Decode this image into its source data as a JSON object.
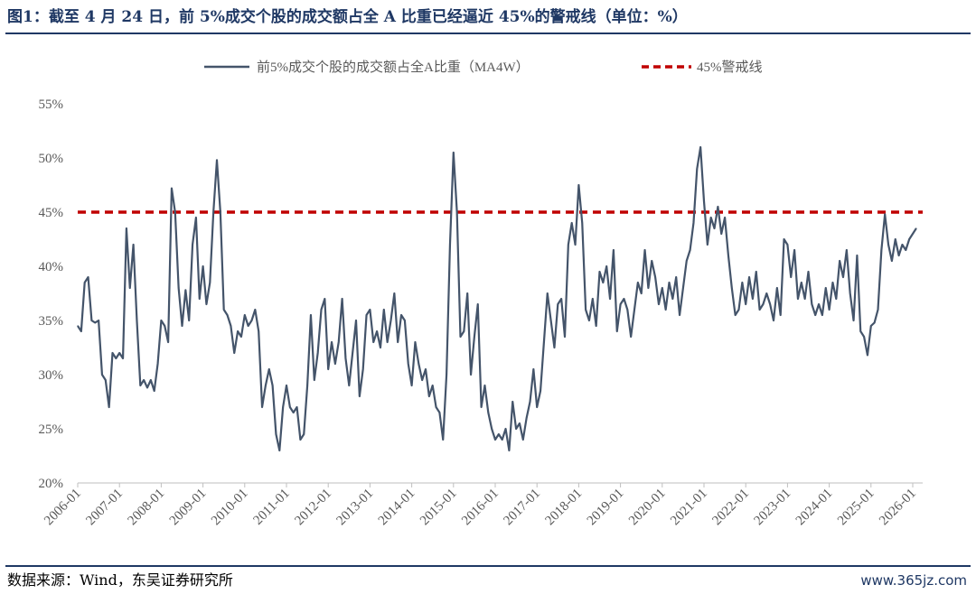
{
  "figure": {
    "title": "图1：截至 4 月 24 日，前 5%成交个股的成交额占全 A 比重已经逼近 45%的警戒线（单位：%）",
    "source": "数据来源：Wind，东吴证券研究所",
    "watermark": "www.365jz.com"
  },
  "colors": {
    "title": "#1f3864",
    "series_line": "#44546a",
    "threshold_line": "#c00000",
    "axis_text": "#595959"
  },
  "chart_data": {
    "type": "line",
    "title": "",
    "xlabel": "",
    "ylabel": "",
    "ylim": [
      20,
      55
    ],
    "yticks": [
      "20%",
      "25%",
      "30%",
      "35%",
      "40%",
      "45%",
      "50%",
      "55%"
    ],
    "xticks": [
      "2006-01",
      "2007-01",
      "2008-01",
      "2009-01",
      "2010-01",
      "2011-01",
      "2012-01",
      "2013-01",
      "2014-01",
      "2015-01",
      "2016-01",
      "2017-01",
      "2018-01",
      "2019-01",
      "2020-01",
      "2021-01",
      "2022-01",
      "2023-01",
      "2024-01",
      "2025-01",
      "2026-01"
    ],
    "grid": false,
    "legend_position": "top-center",
    "series": [
      {
        "name": "前5%成交个股的成交额占全A比重（MA4W）",
        "style": "solid",
        "points": [
          [
            "2006-01",
            34.5
          ],
          [
            "2006-02",
            34.0
          ],
          [
            "2006-03",
            38.5
          ],
          [
            "2006-04",
            39.0
          ],
          [
            "2006-05",
            35.0
          ],
          [
            "2006-06",
            34.8
          ],
          [
            "2006-07",
            35.0
          ],
          [
            "2006-08",
            30.0
          ],
          [
            "2006-09",
            29.5
          ],
          [
            "2006-10",
            27.0
          ],
          [
            "2006-11",
            32.0
          ],
          [
            "2006-12",
            31.5
          ],
          [
            "2007-01",
            32.0
          ],
          [
            "2007-02",
            31.5
          ],
          [
            "2007-03",
            43.5
          ],
          [
            "2007-04",
            38.0
          ],
          [
            "2007-05",
            42.0
          ],
          [
            "2007-06",
            35.0
          ],
          [
            "2007-07",
            29.0
          ],
          [
            "2007-08",
            29.5
          ],
          [
            "2007-09",
            28.8
          ],
          [
            "2007-10",
            29.5
          ],
          [
            "2007-11",
            28.5
          ],
          [
            "2007-12",
            31.0
          ],
          [
            "2008-01",
            35.0
          ],
          [
            "2008-02",
            34.5
          ],
          [
            "2008-03",
            33.0
          ],
          [
            "2008-04",
            47.2
          ],
          [
            "2008-05",
            45.0
          ],
          [
            "2008-06",
            38.0
          ],
          [
            "2008-07",
            34.5
          ],
          [
            "2008-08",
            37.8
          ],
          [
            "2008-09",
            35.0
          ],
          [
            "2008-10",
            42.0
          ],
          [
            "2008-11",
            44.5
          ],
          [
            "2008-12",
            37.0
          ],
          [
            "2009-01",
            40.0
          ],
          [
            "2009-02",
            36.5
          ],
          [
            "2009-03",
            38.5
          ],
          [
            "2009-04",
            45.0
          ],
          [
            "2009-05",
            49.8
          ],
          [
            "2009-06",
            45.0
          ],
          [
            "2009-07",
            36.0
          ],
          [
            "2009-08",
            35.5
          ],
          [
            "2009-09",
            34.5
          ],
          [
            "2009-10",
            32.0
          ],
          [
            "2009-11",
            34.0
          ],
          [
            "2009-12",
            33.5
          ],
          [
            "2010-01",
            35.5
          ],
          [
            "2010-02",
            34.5
          ],
          [
            "2010-03",
            35.0
          ],
          [
            "2010-04",
            36.0
          ],
          [
            "2010-05",
            34.0
          ],
          [
            "2010-06",
            27.0
          ],
          [
            "2010-07",
            29.0
          ],
          [
            "2010-08",
            30.5
          ],
          [
            "2010-09",
            29.0
          ],
          [
            "2010-10",
            24.5
          ],
          [
            "2010-11",
            23.0
          ],
          [
            "2010-12",
            27.0
          ],
          [
            "2011-01",
            29.0
          ],
          [
            "2011-02",
            27.0
          ],
          [
            "2011-03",
            26.5
          ],
          [
            "2011-04",
            27.0
          ],
          [
            "2011-05",
            24.0
          ],
          [
            "2011-06",
            24.5
          ],
          [
            "2011-07",
            29.0
          ],
          [
            "2011-08",
            35.5
          ],
          [
            "2011-09",
            29.5
          ],
          [
            "2011-10",
            32.0
          ],
          [
            "2011-11",
            36.0
          ],
          [
            "2011-12",
            37.0
          ],
          [
            "2012-01",
            30.5
          ],
          [
            "2012-02",
            33.0
          ],
          [
            "2012-03",
            31.0
          ],
          [
            "2012-04",
            33.0
          ],
          [
            "2012-05",
            37.0
          ],
          [
            "2012-06",
            31.5
          ],
          [
            "2012-07",
            29.0
          ],
          [
            "2012-08",
            32.0
          ],
          [
            "2012-09",
            35.0
          ],
          [
            "2012-10",
            28.0
          ],
          [
            "2012-11",
            30.5
          ],
          [
            "2012-12",
            35.5
          ],
          [
            "2013-01",
            36.0
          ],
          [
            "2013-02",
            33.0
          ],
          [
            "2013-03",
            34.0
          ],
          [
            "2013-04",
            32.5
          ],
          [
            "2013-05",
            36.0
          ],
          [
            "2013-06",
            33.0
          ],
          [
            "2013-07",
            35.0
          ],
          [
            "2013-08",
            37.5
          ],
          [
            "2013-09",
            33.0
          ],
          [
            "2013-10",
            35.5
          ],
          [
            "2013-11",
            35.0
          ],
          [
            "2013-12",
            31.0
          ],
          [
            "2014-01",
            29.0
          ],
          [
            "2014-02",
            33.0
          ],
          [
            "2014-03",
            31.0
          ],
          [
            "2014-04",
            29.5
          ],
          [
            "2014-05",
            30.5
          ],
          [
            "2014-06",
            28.0
          ],
          [
            "2014-07",
            29.0
          ],
          [
            "2014-08",
            27.0
          ],
          [
            "2014-09",
            26.5
          ],
          [
            "2014-10",
            24.0
          ],
          [
            "2014-11",
            30.0
          ],
          [
            "2014-12",
            42.0
          ],
          [
            "2015-01",
            50.5
          ],
          [
            "2015-02",
            45.0
          ],
          [
            "2015-03",
            33.5
          ],
          [
            "2015-04",
            34.0
          ],
          [
            "2015-05",
            37.5
          ],
          [
            "2015-06",
            30.0
          ],
          [
            "2015-07",
            33.5
          ],
          [
            "2015-08",
            36.5
          ],
          [
            "2015-09",
            27.0
          ],
          [
            "2015-10",
            29.0
          ],
          [
            "2015-11",
            26.5
          ],
          [
            "2015-12",
            25.0
          ],
          [
            "2016-01",
            24.0
          ],
          [
            "2016-02",
            24.5
          ],
          [
            "2016-03",
            24.0
          ],
          [
            "2016-04",
            25.0
          ],
          [
            "2016-05",
            23.0
          ],
          [
            "2016-06",
            27.5
          ],
          [
            "2016-07",
            25.0
          ],
          [
            "2016-08",
            25.5
          ],
          [
            "2016-09",
            24.0
          ],
          [
            "2016-10",
            26.0
          ],
          [
            "2016-11",
            27.5
          ],
          [
            "2016-12",
            30.5
          ],
          [
            "2017-01",
            27.0
          ],
          [
            "2017-02",
            28.5
          ],
          [
            "2017-03",
            33.0
          ],
          [
            "2017-04",
            37.5
          ],
          [
            "2017-05",
            35.0
          ],
          [
            "2017-06",
            32.5
          ],
          [
            "2017-07",
            36.5
          ],
          [
            "2017-08",
            37.0
          ],
          [
            "2017-09",
            33.5
          ],
          [
            "2017-10",
            42.0
          ],
          [
            "2017-11",
            44.0
          ],
          [
            "2017-12",
            42.0
          ],
          [
            "2018-01",
            47.5
          ],
          [
            "2018-02",
            44.0
          ],
          [
            "2018-03",
            36.0
          ],
          [
            "2018-04",
            35.0
          ],
          [
            "2018-05",
            37.0
          ],
          [
            "2018-06",
            34.5
          ],
          [
            "2018-07",
            39.5
          ],
          [
            "2018-08",
            38.5
          ],
          [
            "2018-09",
            40.0
          ],
          [
            "2018-10",
            37.0
          ],
          [
            "2018-11",
            41.5
          ],
          [
            "2018-12",
            34.0
          ],
          [
            "2019-01",
            36.5
          ],
          [
            "2019-02",
            37.0
          ],
          [
            "2019-03",
            36.0
          ],
          [
            "2019-04",
            33.5
          ],
          [
            "2019-05",
            36.0
          ],
          [
            "2019-06",
            38.5
          ],
          [
            "2019-07",
            37.5
          ],
          [
            "2019-08",
            41.5
          ],
          [
            "2019-09",
            38.0
          ],
          [
            "2019-10",
            40.5
          ],
          [
            "2019-11",
            39.0
          ],
          [
            "2019-12",
            36.5
          ],
          [
            "2020-01",
            38.0
          ],
          [
            "2020-02",
            36.0
          ],
          [
            "2020-03",
            38.5
          ],
          [
            "2020-04",
            37.0
          ],
          [
            "2020-05",
            39.0
          ],
          [
            "2020-06",
            35.5
          ],
          [
            "2020-07",
            38.0
          ],
          [
            "2020-08",
            40.5
          ],
          [
            "2020-09",
            41.5
          ],
          [
            "2020-10",
            44.0
          ],
          [
            "2020-11",
            49.0
          ],
          [
            "2020-12",
            51.0
          ],
          [
            "2021-01",
            46.0
          ],
          [
            "2021-02",
            42.0
          ],
          [
            "2021-03",
            44.5
          ],
          [
            "2021-04",
            43.5
          ],
          [
            "2021-05",
            45.5
          ],
          [
            "2021-06",
            43.0
          ],
          [
            "2021-07",
            44.5
          ],
          [
            "2021-08",
            41.0
          ],
          [
            "2021-09",
            38.0
          ],
          [
            "2021-10",
            35.5
          ],
          [
            "2021-11",
            36.0
          ],
          [
            "2021-12",
            38.5
          ],
          [
            "2022-01",
            36.5
          ],
          [
            "2022-02",
            39.0
          ],
          [
            "2022-03",
            37.0
          ],
          [
            "2022-04",
            39.5
          ],
          [
            "2022-05",
            36.0
          ],
          [
            "2022-06",
            36.5
          ],
          [
            "2022-07",
            37.5
          ],
          [
            "2022-08",
            36.5
          ],
          [
            "2022-09",
            35.0
          ],
          [
            "2022-10",
            38.0
          ],
          [
            "2022-11",
            35.5
          ],
          [
            "2022-12",
            42.5
          ],
          [
            "2023-01",
            42.0
          ],
          [
            "2023-02",
            39.0
          ],
          [
            "2023-03",
            41.5
          ],
          [
            "2023-04",
            37.0
          ],
          [
            "2023-05",
            38.5
          ],
          [
            "2023-06",
            37.0
          ],
          [
            "2023-07",
            39.5
          ],
          [
            "2023-08",
            36.5
          ],
          [
            "2023-09",
            35.5
          ],
          [
            "2023-10",
            36.5
          ],
          [
            "2023-11",
            35.5
          ],
          [
            "2023-12",
            38.0
          ],
          [
            "2024-01",
            36.0
          ],
          [
            "2024-02",
            38.5
          ],
          [
            "2024-03",
            37.0
          ],
          [
            "2024-04",
            40.5
          ],
          [
            "2024-05",
            39.0
          ],
          [
            "2024-06",
            41.5
          ],
          [
            "2024-07",
            37.5
          ],
          [
            "2024-08",
            35.0
          ],
          [
            "2024-09",
            41.0
          ],
          [
            "2024-10",
            34.0
          ],
          [
            "2024-11",
            33.5
          ],
          [
            "2024-12",
            31.8
          ],
          [
            "2025-01",
            34.5
          ],
          [
            "2025-02",
            34.8
          ],
          [
            "2025-03",
            36.0
          ],
          [
            "2025-04",
            41.5
          ],
          [
            "2025-05",
            44.8
          ],
          [
            "2025-06",
            42.0
          ],
          [
            "2025-07",
            40.5
          ],
          [
            "2025-08",
            42.5
          ],
          [
            "2025-09",
            41.0
          ],
          [
            "2025-10",
            42.0
          ],
          [
            "2025-11",
            41.5
          ],
          [
            "2025-12",
            42.5
          ],
          [
            "2026-01",
            43.0
          ],
          [
            "2026-02",
            43.5
          ]
        ]
      },
      {
        "name": "45%警戒线",
        "style": "dashed",
        "y": 45
      }
    ]
  }
}
